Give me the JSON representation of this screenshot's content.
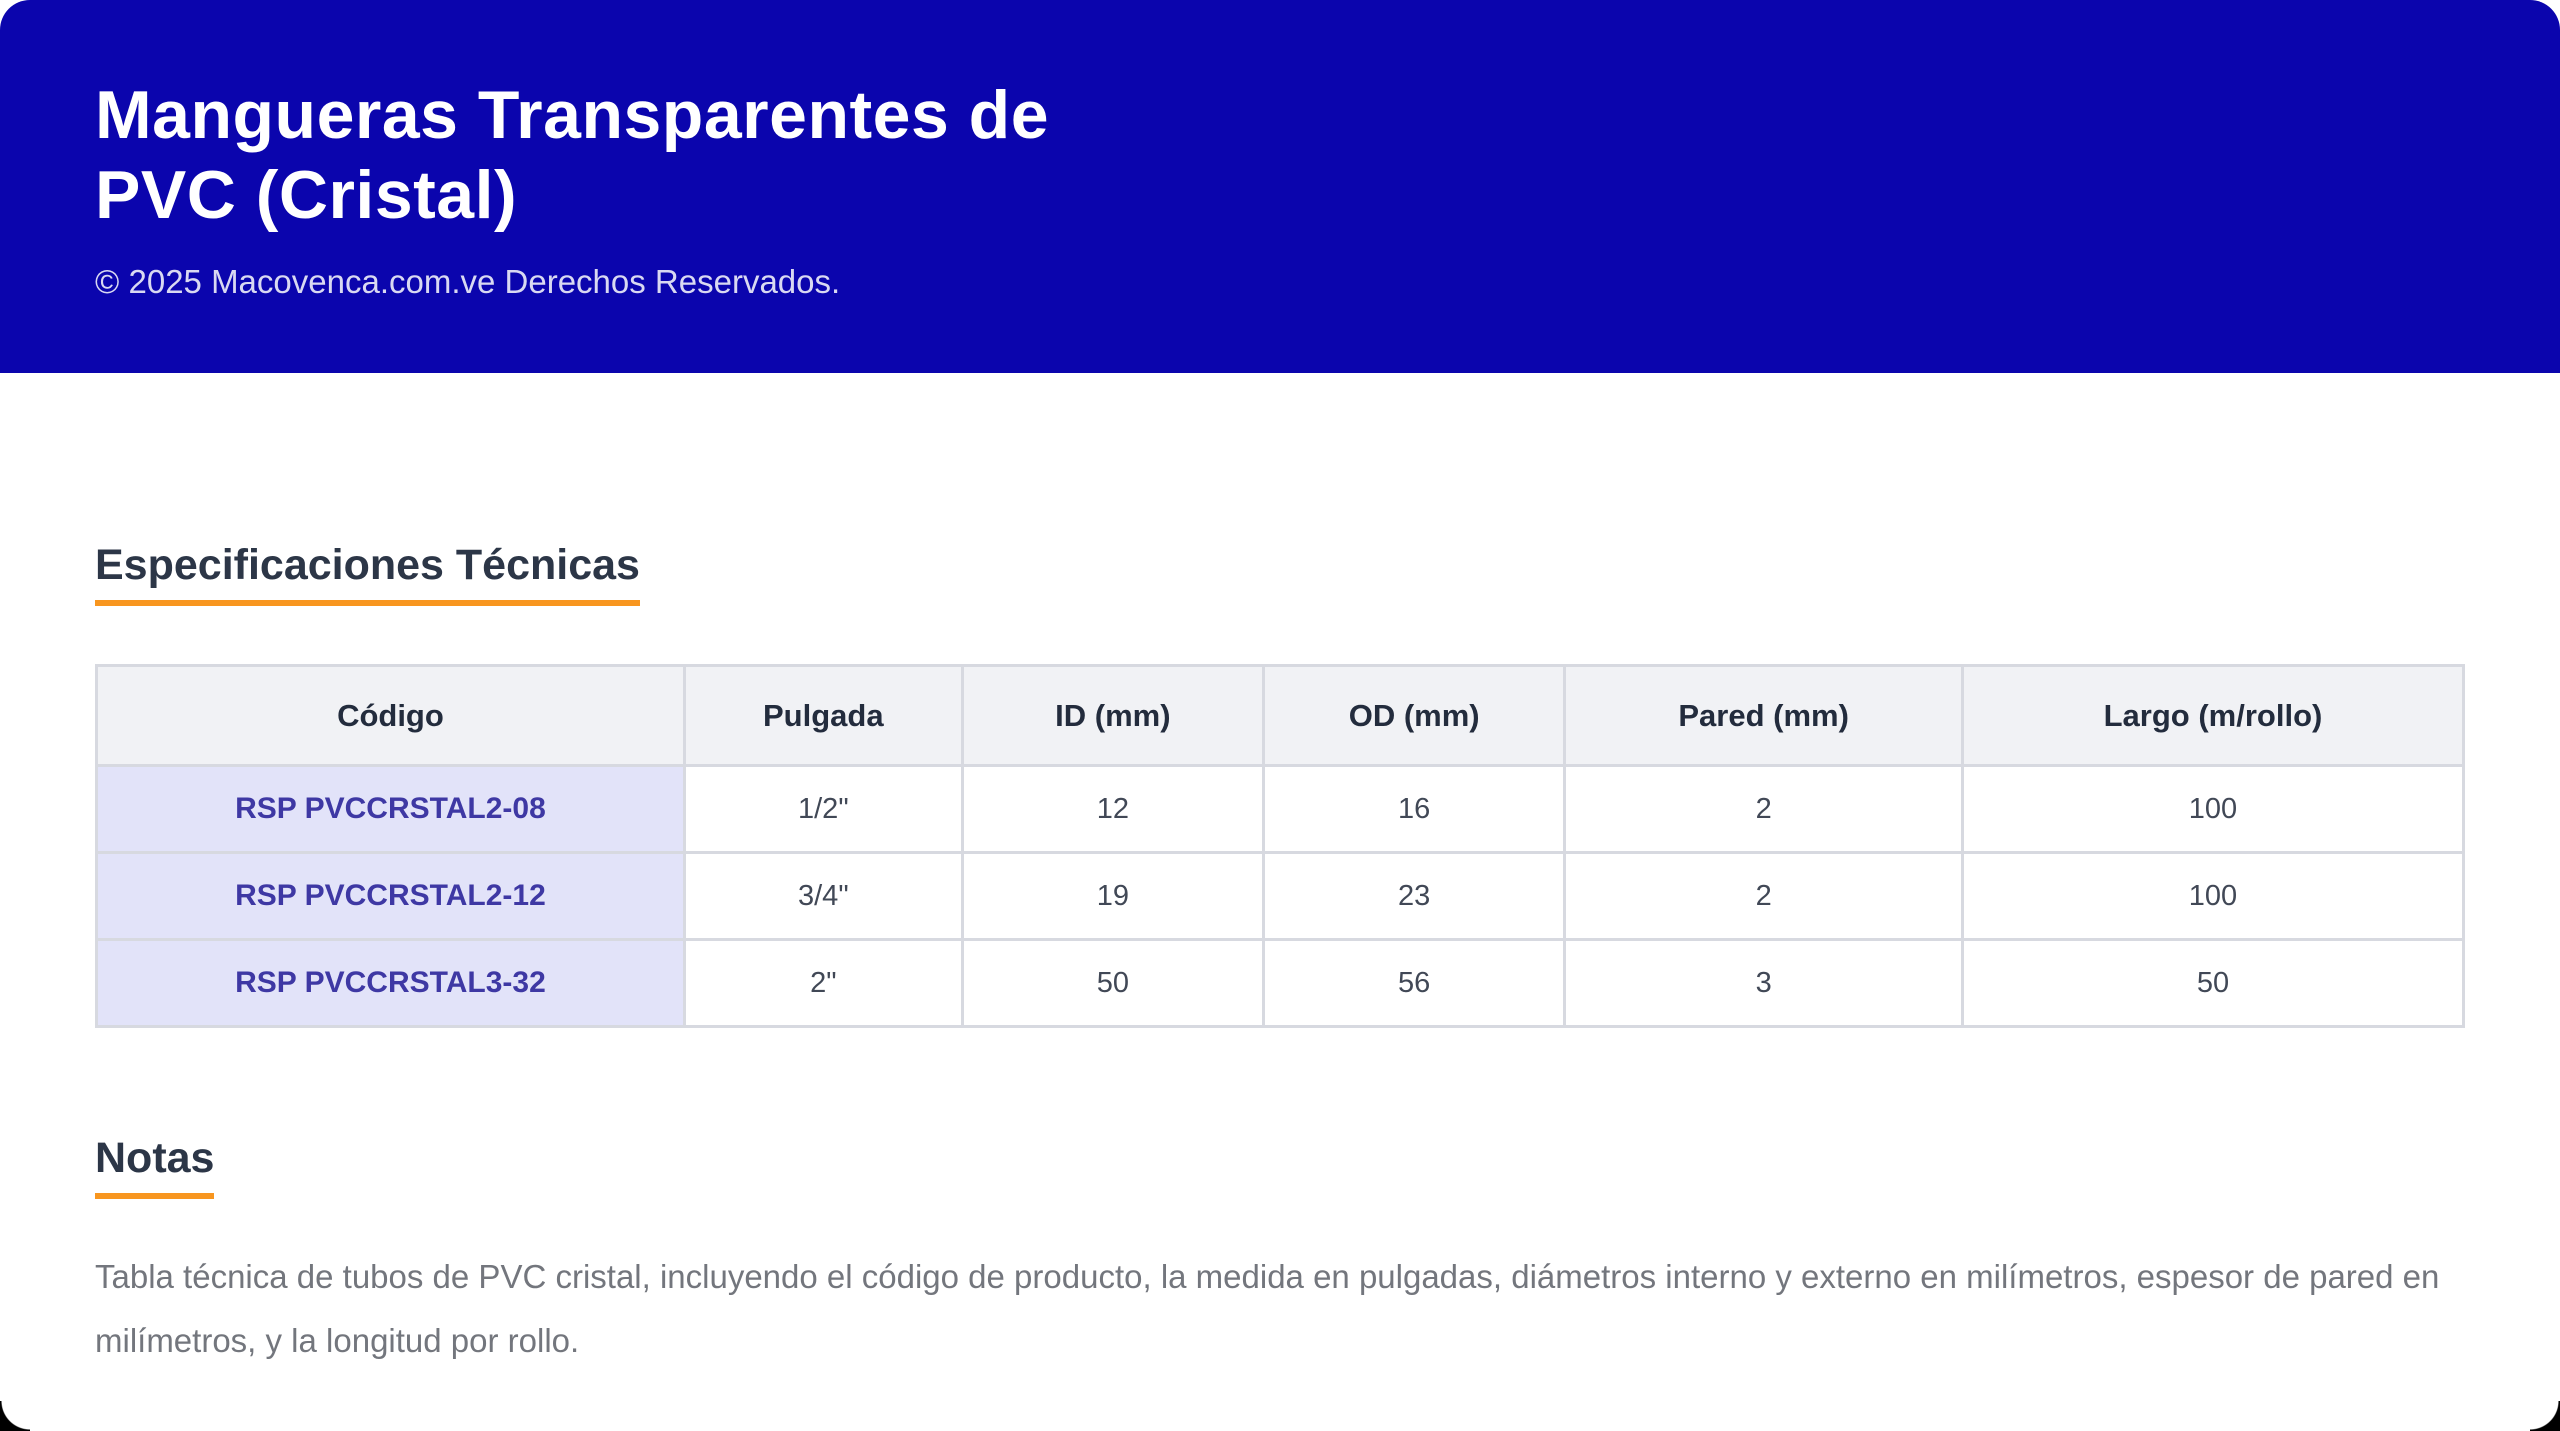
{
  "header": {
    "title": "Mangueras Transparentes de PVC (Cristal)",
    "copyright": "© 2025 Macovenca.com.ve Derechos Reservados."
  },
  "specs_section": {
    "heading": "Especificaciones Técnicas"
  },
  "table": {
    "columns": [
      "Código",
      "Pulgada",
      "ID (mm)",
      "OD (mm)",
      "Pared (mm)",
      "Largo (m/rollo)"
    ],
    "rows": [
      [
        "RSP PVCCRSTAL2-08",
        "1/2\"",
        "12",
        "16",
        "2",
        "100"
      ],
      [
        "RSP PVCCRSTAL2-12",
        "3/4\"",
        "19",
        "23",
        "2",
        "100"
      ],
      [
        "RSP PVCCRSTAL3-32",
        "2\"",
        "50",
        "56",
        "3",
        "50"
      ]
    ]
  },
  "notes_section": {
    "heading": "Notas",
    "body": "Tabla técnica de tubos de PVC cristal, incluyendo el código de producto, la medida en pulgadas, diámetros interno y externo en milímetros, espesor de pared en milímetros, y la longitud por rollo."
  },
  "colors": {
    "header_background": "#0b05ad",
    "accent_orange": "#f8961f",
    "code_text": "#3e38a4",
    "code_row_background": "#e2e3f9",
    "table_grid": "#d7d9e0",
    "table_header_background": "#f1f2f5"
  }
}
